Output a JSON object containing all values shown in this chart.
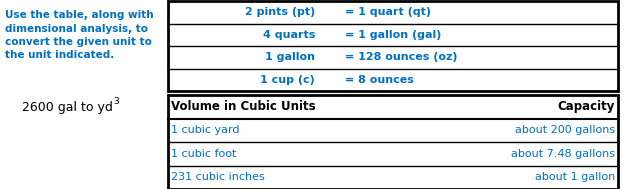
{
  "left_text_lines": [
    "Use the table, along with",
    "dimensional analysis, to",
    "convert the given unit to",
    "the unit indicated."
  ],
  "left_text_color": "#0070c0",
  "problem_text": "2600 gal to yd",
  "problem_superscript": "3",
  "problem_color": "#000000",
  "top_table": {
    "rows": [
      {
        "left": "2 pints (pt)",
        "right": "= 1 quart (qt)"
      },
      {
        "left": "4 quarts",
        "right": "= 1 gallon (gal)"
      },
      {
        "left": "1 gallon",
        "right": "= 128 ounces (oz)"
      },
      {
        "left": "1 cup (c)",
        "right": "= 8 ounces"
      }
    ],
    "text_color": "#0070c0"
  },
  "bottom_table": {
    "header": {
      "left": "Volume in Cubic Units",
      "right": "Capacity"
    },
    "header_color": "#000000",
    "rows": [
      {
        "left": "1 cubic yard",
        "right": "about 200 gallons"
      },
      {
        "left": "1 cubic foot",
        "right": "about 7.48 gallons"
      },
      {
        "left": "231 cubic inches",
        "right": "about 1 gallon"
      }
    ],
    "text_color": "#0070c0"
  },
  "table_border_color": "#000000",
  "background_color": "#ffffff",
  "figsize": [
    6.27,
    1.89
  ],
  "dpi": 100
}
